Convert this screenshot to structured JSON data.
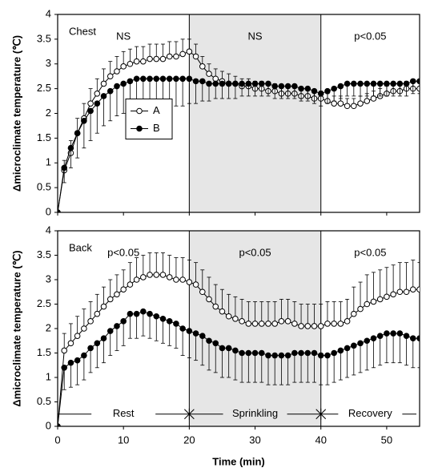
{
  "chart_data": [
    {
      "type": "line",
      "title": "Chest",
      "ylabel": "Δmicroclimate temperature (℃)",
      "x": [
        0,
        1,
        2,
        3,
        4,
        5,
        6,
        7,
        8,
        9,
        10,
        11,
        12,
        13,
        14,
        15,
        16,
        17,
        18,
        19,
        20,
        21,
        22,
        23,
        24,
        25,
        26,
        27,
        28,
        29,
        30,
        31,
        32,
        33,
        34,
        35,
        36,
        37,
        38,
        39,
        40,
        41,
        42,
        43,
        44,
        45,
        46,
        47,
        48,
        49,
        50,
        51,
        52,
        53,
        54,
        55
      ],
      "xlim": [
        0,
        55
      ],
      "xticks": [
        0,
        10,
        20,
        30,
        40,
        50
      ],
      "ylim": [
        0,
        4
      ],
      "yticks": [
        0,
        0.5,
        1,
        1.5,
        2,
        2.5,
        3,
        3.5,
        4
      ],
      "shaded": [
        20,
        40
      ],
      "region_labels": [
        "NS",
        "NS",
        "p<0.05"
      ],
      "legend": "center-left",
      "series": [
        {
          "name": "A",
          "color": "#000000",
          "marker": "open",
          "error_direction": "up",
          "values": [
            0,
            0.85,
            1.2,
            1.6,
            1.9,
            2.2,
            2.4,
            2.6,
            2.75,
            2.85,
            2.95,
            3.0,
            3.05,
            3.05,
            3.1,
            3.1,
            3.1,
            3.15,
            3.15,
            3.2,
            3.25,
            3.15,
            2.95,
            2.8,
            2.7,
            2.65,
            2.6,
            2.6,
            2.55,
            2.55,
            2.5,
            2.5,
            2.45,
            2.45,
            2.4,
            2.4,
            2.4,
            2.35,
            2.35,
            2.3,
            2.3,
            2.25,
            2.2,
            2.2,
            2.15,
            2.15,
            2.2,
            2.25,
            2.3,
            2.35,
            2.4,
            2.45,
            2.45,
            2.5,
            2.5,
            2.5
          ],
          "errors": [
            0,
            0.2,
            0.25,
            0.3,
            0.3,
            0.3,
            0.3,
            0.3,
            0.3,
            0.3,
            0.3,
            0.3,
            0.3,
            0.3,
            0.3,
            0.3,
            0.3,
            0.3,
            0.3,
            0.3,
            0.25,
            0.25,
            0.2,
            0.2,
            0.2,
            0.2,
            0.2,
            0.15,
            0.15,
            0.15,
            0.15,
            0.15,
            0.15,
            0.15,
            0.15,
            0.15,
            0.15,
            0.15,
            0.15,
            0.15,
            0.15,
            0.15,
            0.15,
            0.15,
            0.15,
            0.15,
            0.15,
            0.15,
            0.15,
            0.15,
            0.15,
            0.15,
            0.15,
            0.15,
            0.15,
            0.15
          ]
        },
        {
          "name": "B",
          "color": "#000000",
          "marker": "filled",
          "error_direction": "down",
          "values": [
            0,
            0.9,
            1.3,
            1.6,
            1.85,
            2.05,
            2.2,
            2.35,
            2.45,
            2.55,
            2.6,
            2.65,
            2.7,
            2.7,
            2.7,
            2.7,
            2.7,
            2.7,
            2.7,
            2.7,
            2.7,
            2.65,
            2.65,
            2.6,
            2.6,
            2.6,
            2.6,
            2.6,
            2.6,
            2.6,
            2.6,
            2.6,
            2.6,
            2.55,
            2.55,
            2.55,
            2.55,
            2.5,
            2.5,
            2.45,
            2.4,
            2.45,
            2.5,
            2.55,
            2.6,
            2.6,
            2.6,
            2.6,
            2.6,
            2.6,
            2.6,
            2.6,
            2.6,
            2.6,
            2.65,
            2.65
          ],
          "errors": [
            0,
            0.3,
            0.4,
            0.5,
            0.55,
            0.6,
            0.6,
            0.6,
            0.6,
            0.6,
            0.6,
            0.6,
            0.6,
            0.6,
            0.6,
            0.6,
            0.6,
            0.55,
            0.55,
            0.55,
            0.5,
            0.45,
            0.4,
            0.35,
            0.3,
            0.3,
            0.3,
            0.3,
            0.25,
            0.25,
            0.25,
            0.25,
            0.25,
            0.25,
            0.25,
            0.25,
            0.25,
            0.25,
            0.25,
            0.25,
            0.25,
            0.25,
            0.25,
            0.25,
            0.25,
            0.25,
            0.25,
            0.25,
            0.25,
            0.25,
            0.25,
            0.25,
            0.25,
            0.25,
            0.25,
            0.25
          ]
        }
      ]
    },
    {
      "type": "line",
      "title": "Back",
      "ylabel": "Δmicroclimate temperature (℃)",
      "xlabel": "Time (min)",
      "x": [
        0,
        1,
        2,
        3,
        4,
        5,
        6,
        7,
        8,
        9,
        10,
        11,
        12,
        13,
        14,
        15,
        16,
        17,
        18,
        19,
        20,
        21,
        22,
        23,
        24,
        25,
        26,
        27,
        28,
        29,
        30,
        31,
        32,
        33,
        34,
        35,
        36,
        37,
        38,
        39,
        40,
        41,
        42,
        43,
        44,
        45,
        46,
        47,
        48,
        49,
        50,
        51,
        52,
        53,
        54,
        55
      ],
      "xlim": [
        0,
        55
      ],
      "xticks": [
        0,
        10,
        20,
        30,
        40,
        50
      ],
      "ylim": [
        0,
        4
      ],
      "yticks": [
        0,
        0.5,
        1,
        1.5,
        2,
        2.5,
        3,
        3.5,
        4
      ],
      "shaded": [
        20,
        40
      ],
      "region_labels": [
        "p<0.05",
        "p<0.05",
        "p<0.05"
      ],
      "phases": [
        "Rest",
        "Sprinkling",
        "Recovery"
      ],
      "series": [
        {
          "name": "A",
          "color": "#000000",
          "marker": "open",
          "error_direction": "up",
          "values": [
            0,
            1.55,
            1.7,
            1.85,
            2.0,
            2.15,
            2.3,
            2.45,
            2.6,
            2.7,
            2.8,
            2.9,
            3.0,
            3.05,
            3.1,
            3.1,
            3.1,
            3.05,
            3.0,
            3.0,
            2.95,
            2.9,
            2.75,
            2.6,
            2.45,
            2.35,
            2.25,
            2.2,
            2.15,
            2.1,
            2.1,
            2.1,
            2.1,
            2.1,
            2.15,
            2.15,
            2.1,
            2.05,
            2.05,
            2.05,
            2.05,
            2.1,
            2.1,
            2.1,
            2.15,
            2.3,
            2.4,
            2.5,
            2.55,
            2.6,
            2.65,
            2.7,
            2.75,
            2.75,
            2.8,
            2.8
          ],
          "errors": [
            0,
            0.35,
            0.4,
            0.4,
            0.4,
            0.4,
            0.4,
            0.4,
            0.4,
            0.4,
            0.4,
            0.45,
            0.45,
            0.45,
            0.45,
            0.45,
            0.45,
            0.45,
            0.45,
            0.45,
            0.45,
            0.45,
            0.45,
            0.45,
            0.45,
            0.45,
            0.45,
            0.45,
            0.45,
            0.45,
            0.45,
            0.45,
            0.45,
            0.45,
            0.45,
            0.45,
            0.45,
            0.45,
            0.45,
            0.45,
            0.45,
            0.45,
            0.45,
            0.45,
            0.45,
            0.55,
            0.55,
            0.6,
            0.6,
            0.6,
            0.6,
            0.6,
            0.6,
            0.6,
            0.6,
            0.55
          ]
        },
        {
          "name": "B",
          "color": "#000000",
          "marker": "filled",
          "error_direction": "down",
          "values": [
            0,
            1.2,
            1.3,
            1.35,
            1.45,
            1.6,
            1.7,
            1.8,
            1.95,
            2.05,
            2.15,
            2.3,
            2.3,
            2.35,
            2.3,
            2.25,
            2.2,
            2.15,
            2.1,
            2.0,
            1.95,
            1.9,
            1.85,
            1.75,
            1.7,
            1.6,
            1.6,
            1.55,
            1.5,
            1.5,
            1.5,
            1.5,
            1.45,
            1.45,
            1.45,
            1.45,
            1.5,
            1.5,
            1.5,
            1.5,
            1.45,
            1.45,
            1.5,
            1.55,
            1.6,
            1.65,
            1.7,
            1.75,
            1.8,
            1.85,
            1.9,
            1.9,
            1.9,
            1.85,
            1.8,
            1.8
          ],
          "errors": [
            0,
            0.45,
            0.5,
            0.5,
            0.5,
            0.5,
            0.5,
            0.5,
            0.5,
            0.5,
            0.5,
            0.5,
            0.5,
            0.5,
            0.5,
            0.5,
            0.5,
            0.5,
            0.5,
            0.55,
            0.55,
            0.55,
            0.6,
            0.6,
            0.6,
            0.6,
            0.6,
            0.6,
            0.6,
            0.6,
            0.6,
            0.6,
            0.6,
            0.6,
            0.6,
            0.6,
            0.6,
            0.6,
            0.6,
            0.6,
            0.6,
            0.6,
            0.6,
            0.6,
            0.6,
            0.6,
            0.6,
            0.6,
            0.6,
            0.6,
            0.6,
            0.6,
            0.6,
            0.6,
            0.6,
            0.6
          ]
        }
      ]
    }
  ]
}
